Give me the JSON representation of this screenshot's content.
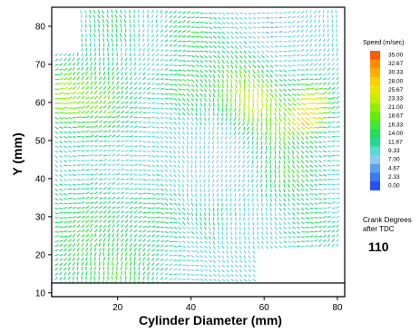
{
  "chart_data": {
    "type": "heatmap",
    "subtype": "velocity-vector-field",
    "xlabel": "Cylinder Diameter (mm)",
    "ylabel": "Y (mm)",
    "xlim": [
      2,
      82
    ],
    "ylim": [
      9,
      85
    ],
    "xticks": [
      20,
      40,
      60,
      80
    ],
    "yticks": [
      10,
      20,
      30,
      40,
      50,
      60,
      70,
      80
    ],
    "grid": false,
    "legend": {
      "title": "Speed (m/sec)",
      "placement": "right",
      "values": [
        "35.00",
        "32.67",
        "30.33",
        "28.00",
        "25.67",
        "23.33",
        "21.00",
        "18.67",
        "16.33",
        "14.00",
        "11.67",
        "9.33",
        "7.00",
        "4.67",
        "2.33",
        "0.00"
      ],
      "colors": [
        "#ff5a00",
        "#ff8c00",
        "#ffb000",
        "#ffd000",
        "#e8e600",
        "#c4ee00",
        "#90f000",
        "#5ff000",
        "#3ce83c",
        "#22dc5a",
        "#28d890",
        "#5ad8d8",
        "#8cc8f0",
        "#5aa0f0",
        "#3c78f0",
        "#2850f0"
      ]
    },
    "annotation": {
      "caption_lines": [
        "Crank Degrees",
        "after TDC"
      ],
      "value": "110"
    },
    "field_regions": [
      {
        "x": 10,
        "y": 25,
        "speed": 16.0,
        "spread": 12
      },
      {
        "x": 20,
        "y": 15,
        "speed": 16.5,
        "spread": 9
      },
      {
        "x": 6,
        "y": 62,
        "speed": 24.0,
        "spread": 6
      },
      {
        "x": 14,
        "y": 60,
        "speed": 19.0,
        "spread": 9
      },
      {
        "x": 18,
        "y": 80,
        "speed": 14.0,
        "spread": 6
      },
      {
        "x": 40,
        "y": 78,
        "speed": 14.5,
        "spread": 7
      },
      {
        "x": 38,
        "y": 64,
        "speed": 16.0,
        "spread": 6
      },
      {
        "x": 52,
        "y": 65,
        "speed": 19.0,
        "spread": 8
      },
      {
        "x": 58,
        "y": 60,
        "speed": 26.0,
        "spread": 6
      },
      {
        "x": 64,
        "y": 54,
        "speed": 20.0,
        "spread": 7
      },
      {
        "x": 71,
        "y": 56,
        "speed": 33.0,
        "spread": 3.5
      },
      {
        "x": 73,
        "y": 60,
        "speed": 26.0,
        "spread": 5
      },
      {
        "x": 67,
        "y": 42,
        "speed": 17.0,
        "spread": 7
      },
      {
        "x": 73,
        "y": 28,
        "speed": 13.0,
        "spread": 6
      },
      {
        "x": 30,
        "y": 30,
        "speed": 14.0,
        "spread": 7
      },
      {
        "x": 45,
        "y": 30,
        "speed": 12.0,
        "spread": 6
      },
      {
        "x": 48,
        "y": 45,
        "speed": 7.0,
        "spread": 8
      },
      {
        "x": 30,
        "y": 72,
        "speed": 9.0,
        "spread": 4
      },
      {
        "x": 62,
        "y": 80,
        "speed": 6.0,
        "spread": 6
      },
      {
        "x": 52,
        "y": 22,
        "speed": 9.0,
        "spread": 5
      }
    ]
  }
}
